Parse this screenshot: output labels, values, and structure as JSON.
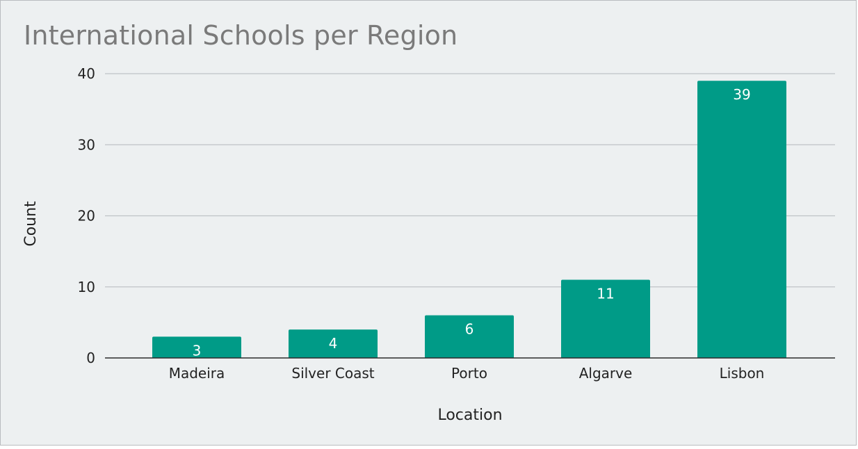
{
  "colors": {
    "bar": "#009b87",
    "background": "#edf0f1",
    "title": "#7a7a7a"
  },
  "chart_data": {
    "type": "bar",
    "title": "International Schools per Region",
    "xlabel": "Location",
    "ylabel": "Count",
    "categories": [
      "Madeira",
      "Silver Coast",
      "Porto",
      "Algarve",
      "Lisbon"
    ],
    "values": [
      3,
      4,
      6,
      11,
      39
    ],
    "ylim": [
      0,
      40
    ],
    "yticks": [
      "0",
      "10",
      "20",
      "30",
      "40"
    ],
    "grid": true,
    "legend": "none",
    "data_labels": true
  }
}
